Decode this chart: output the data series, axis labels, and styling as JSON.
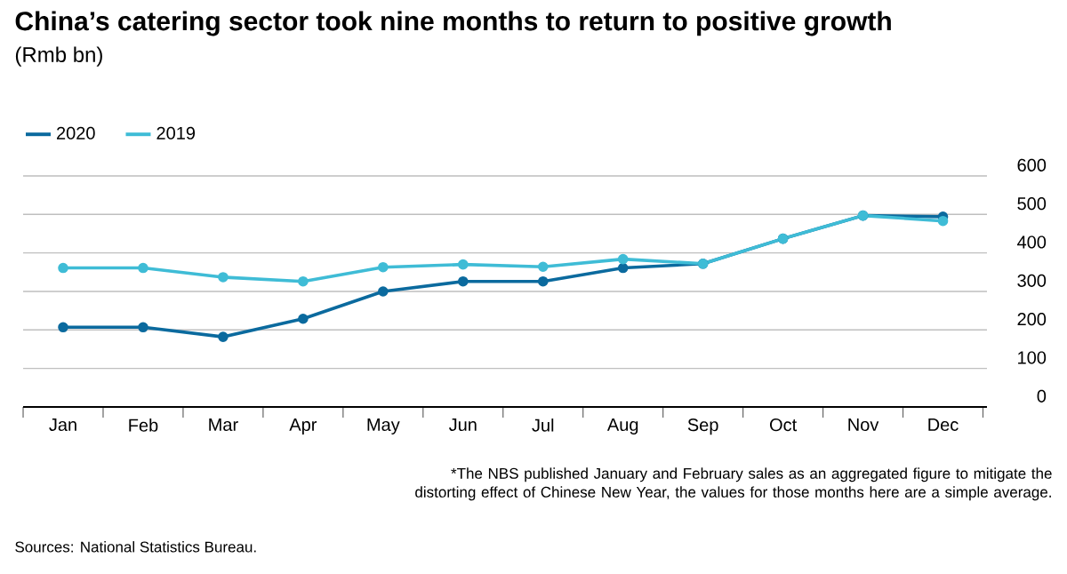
{
  "chart_data": {
    "type": "line",
    "title": "China’s catering sector took nine months to return to positive growth",
    "subtitle": "(Rmb bn)",
    "categories": [
      "Jan",
      "Feb",
      "Mar",
      "Apr",
      "May",
      "Jun",
      "Jul",
      "Aug",
      "Sep",
      "Oct",
      "Nov",
      "Dec"
    ],
    "series": [
      {
        "name": "2020",
        "color": "#0b6a9e",
        "values": [
          207,
          207,
          182,
          229,
          300,
          326,
          326,
          361,
          372,
          437,
          497,
          494
        ]
      },
      {
        "name": "2019",
        "color": "#3fbcd6",
        "values": [
          361,
          361,
          337,
          326,
          363,
          370,
          364,
          384,
          372,
          437,
          497,
          483
        ]
      }
    ],
    "ylim": [
      0,
      600
    ],
    "yticks": [
      0,
      100,
      200,
      300,
      400,
      500,
      600
    ],
    "grid": "y",
    "legend": "top left",
    "marker": "circle",
    "line_style": "solid",
    "annotations": [
      "*The NBS published January and February sales as an aggregated figure to mitigate the distorting effect of Chinese New Year, the values for those months here are a simple average.",
      "Sources: National Statistics Bureau."
    ]
  }
}
